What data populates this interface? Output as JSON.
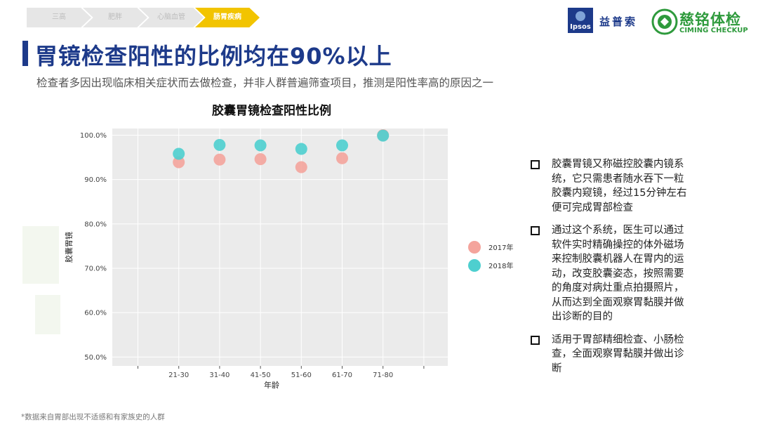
{
  "breadcrumb": {
    "items": [
      {
        "label": "三高",
        "active": false
      },
      {
        "label": "肥胖",
        "active": false
      },
      {
        "label": "心脑血管",
        "active": false
      },
      {
        "label": "肠胃疾病",
        "active": true
      }
    ]
  },
  "logos": {
    "ipsos_text": "Ipsos",
    "ipsos_cn": "益普索",
    "ciming_cn": "慈铭体检",
    "ciming_en": "CIMING CHECKUP"
  },
  "page": {
    "title": "胃镜检查阳性的比例均在90%以上",
    "subtitle": "检查者多因出现临床相关症状而去做检查，并非人群普遍筛查项目，推测是阳性率高的原因之一",
    "footnote": "*数据来自胃部出现不适感和有家族史的人群"
  },
  "chart_data": {
    "type": "scatter",
    "title": "胶囊胃镜检查阳性比例",
    "xlabel": "年龄",
    "ylabel": "胶囊胃镜",
    "categories": [
      "21-30",
      "31-40",
      "41-50",
      "51-60",
      "61-70",
      "71-80"
    ],
    "y_ticks": [
      "50.0%",
      "60.0%",
      "70.0%",
      "80.0%",
      "90.0%",
      "100.0%"
    ],
    "ylim": [
      48,
      101.5
    ],
    "grid": true,
    "legend_position": "right",
    "series": [
      {
        "name": "2017年",
        "color": "#f4a49c",
        "values": [
          93.9,
          94.5,
          94.6,
          92.8,
          94.8,
          100.0
        ]
      },
      {
        "name": "2018年",
        "color": "#4ecfcf",
        "values": [
          95.8,
          97.8,
          97.7,
          96.9,
          97.7,
          99.9
        ]
      }
    ]
  },
  "notes": [
    "胶囊胃镜又称磁控胶囊内镜系统，它只需患者随水吞下一粒胶囊内窥镜，经过15分钟左右便可完成胃部检查",
    "通过这个系统，医生可以通过软件实时精确操控的体外磁场来控制胶囊机器人在胃内的运动，改变胶囊姿态，按照需要的角度对病灶重点拍摄照片，从而达到全面观察胃黏膜并做出诊断的目的",
    "适用于胃部精细检查、小肠检查，全面观察胃黏膜并做出诊断"
  ]
}
